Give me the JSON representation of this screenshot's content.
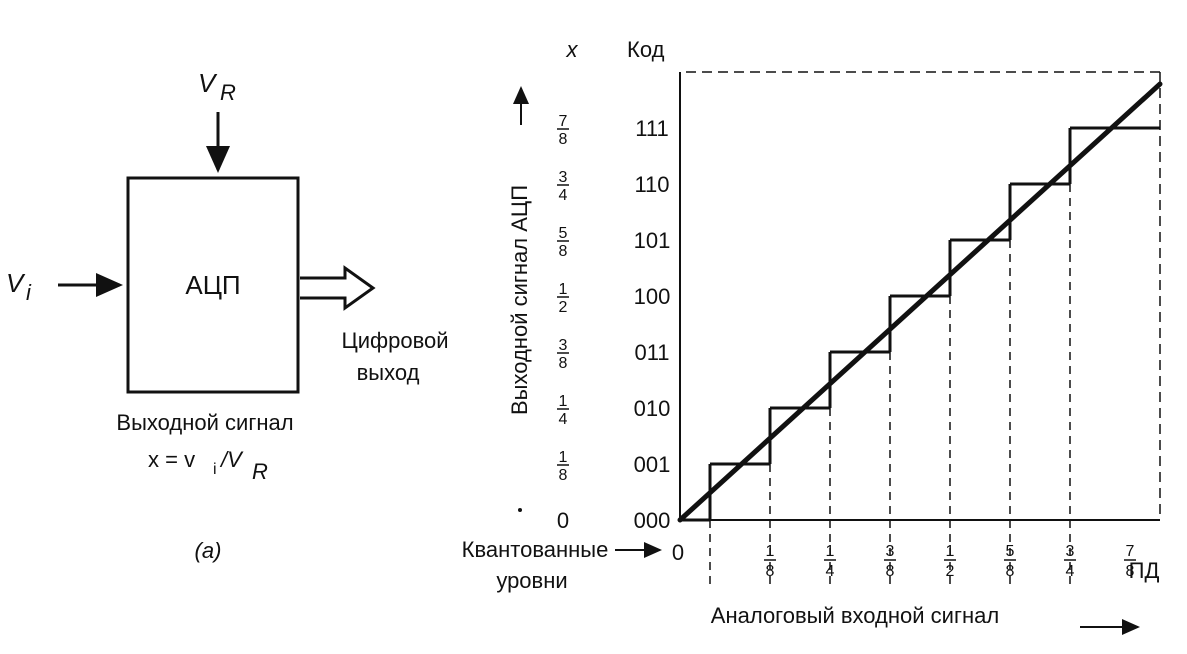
{
  "left_block": {
    "reference_symbol": "V",
    "reference_sub": "R",
    "input_symbol": "V",
    "input_sub": "i",
    "adc_label": "АЦП",
    "digital_out_line1": "Цифровой",
    "digital_out_line2": "выход",
    "output_caption": "Выходной сигнал",
    "formula_left": "x = v",
    "formula_sub_i": "i",
    "formula_slash": "/V",
    "formula_sub_r": "R",
    "panel_label": "(a)"
  },
  "chart_data": {
    "type": "line",
    "title": "",
    "y_axis_label": "Выходной сигнал АЦП",
    "x_axis_label": "Аналоговый входной сигнал",
    "x_col_header": "x",
    "code_header": "Код",
    "quantized_label_line1": "Квантованные",
    "quantized_label_line2": "уровни",
    "full_scale_label": "ПД",
    "y_fraction_ticks": [
      {
        "value": 0,
        "num": "0",
        "den": ""
      },
      {
        "value": 0.125,
        "num": "1",
        "den": "8"
      },
      {
        "value": 0.25,
        "num": "1",
        "den": "4"
      },
      {
        "value": 0.375,
        "num": "3",
        "den": "8"
      },
      {
        "value": 0.5,
        "num": "1",
        "den": "2"
      },
      {
        "value": 0.625,
        "num": "5",
        "den": "8"
      },
      {
        "value": 0.75,
        "num": "3",
        "den": "4"
      },
      {
        "value": 0.875,
        "num": "7",
        "den": "8"
      }
    ],
    "codes": [
      "000",
      "001",
      "010",
      "011",
      "100",
      "101",
      "110",
      "111"
    ],
    "x_fraction_ticks": [
      {
        "value": 0,
        "num": "0",
        "den": ""
      },
      {
        "value": 0.125,
        "num": "1",
        "den": "8"
      },
      {
        "value": 0.25,
        "num": "1",
        "den": "4"
      },
      {
        "value": 0.375,
        "num": "3",
        "den": "8"
      },
      {
        "value": 0.5,
        "num": "1",
        "den": "2"
      },
      {
        "value": 0.625,
        "num": "5",
        "den": "8"
      },
      {
        "value": 0.75,
        "num": "3",
        "den": "4"
      },
      {
        "value": 0.875,
        "num": "7",
        "den": "8"
      }
    ],
    "series": [
      {
        "kind": "ideal",
        "x": [
          0,
          1
        ],
        "y": [
          0,
          1
        ]
      },
      {
        "kind": "staircase",
        "steps": [
          {
            "x_start": 0,
            "x_end": 0.0625,
            "code": 0
          },
          {
            "x_start": 0.0625,
            "x_end": 0.1875,
            "code": 1
          },
          {
            "x_start": 0.1875,
            "x_end": 0.3125,
            "code": 2
          },
          {
            "x_start": 0.3125,
            "x_end": 0.4375,
            "code": 3
          },
          {
            "x_start": 0.4375,
            "x_end": 0.5625,
            "code": 4
          },
          {
            "x_start": 0.5625,
            "x_end": 0.6875,
            "code": 5
          },
          {
            "x_start": 0.6875,
            "x_end": 0.8125,
            "code": 6
          },
          {
            "x_start": 0.8125,
            "x_end": 1.0,
            "code": 7
          }
        ]
      }
    ],
    "xlim": [
      0,
      1
    ],
    "ylim": [
      0,
      1
    ]
  }
}
